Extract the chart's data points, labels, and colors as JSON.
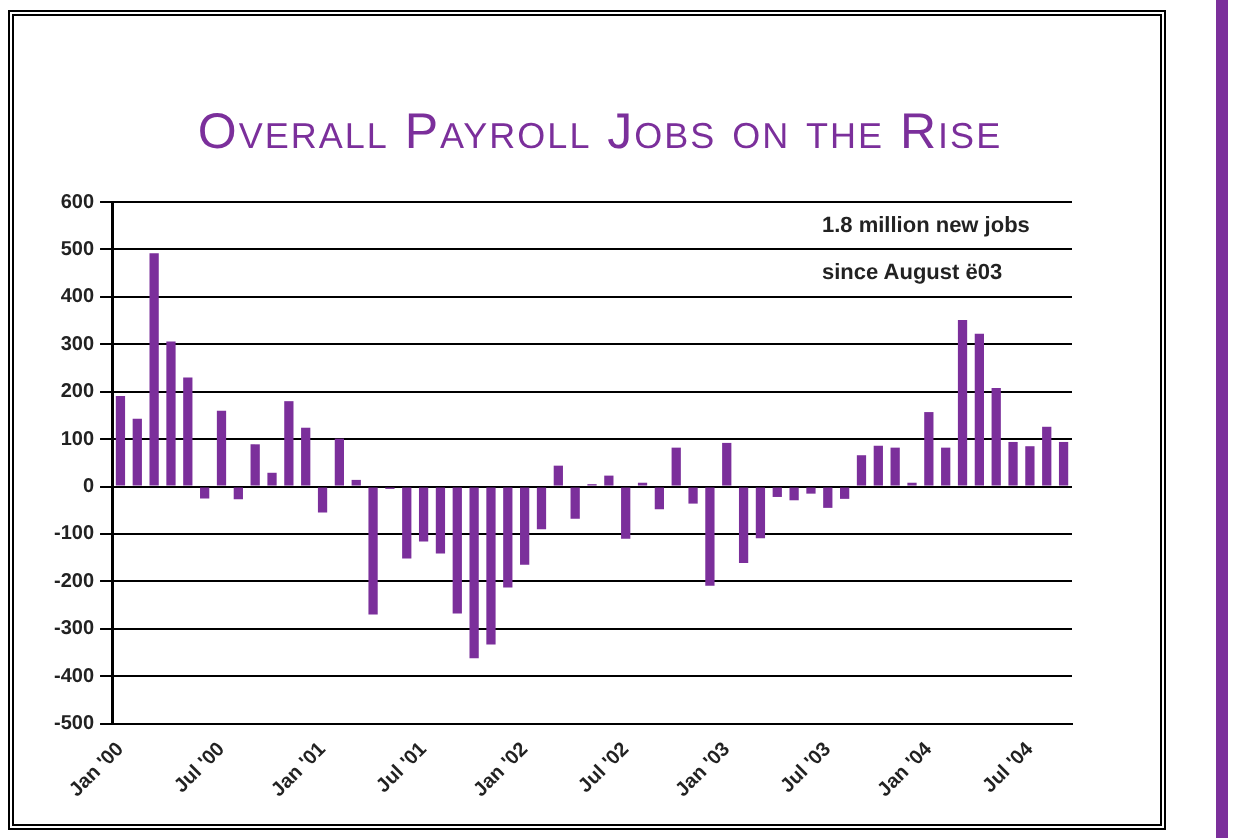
{
  "chart_data": {
    "type": "bar",
    "title": "Overall Payroll Jobs on the Rise",
    "categories": [
      "Jan '00",
      null,
      null,
      null,
      null,
      null,
      "Jul '00",
      null,
      null,
      null,
      null,
      null,
      "Jan '01",
      null,
      null,
      null,
      null,
      null,
      "Jul '01",
      null,
      null,
      null,
      null,
      null,
      "Jan '02",
      null,
      null,
      null,
      null,
      null,
      "Jul '02",
      null,
      null,
      null,
      null,
      null,
      "Jan '03",
      null,
      null,
      null,
      null,
      null,
      "Jul '03",
      null,
      null,
      null,
      null,
      null,
      "Jan '04",
      null,
      null,
      null,
      null,
      null,
      "Jul '04",
      null,
      null
    ],
    "values": [
      191,
      143,
      492,
      306,
      230,
      -25,
      160,
      -27,
      89,
      29,
      180,
      124,
      -55,
      101,
      14,
      -270,
      -5,
      -152,
      -116,
      -141,
      -268,
      -362,
      -333,
      -213,
      -165,
      -90,
      44,
      -68,
      5,
      23,
      -110,
      8,
      -48,
      82,
      -36,
      -209,
      92,
      -161,
      -109,
      -22,
      -29,
      -15,
      -45,
      -26,
      66,
      86,
      82,
      8,
      157,
      82,
      351,
      322,
      208,
      94,
      85,
      126,
      94
    ],
    "color": "#7b2f9b",
    "ylim": [
      -500,
      600
    ],
    "yticks": [
      -500,
      -400,
      -300,
      -200,
      -100,
      0,
      100,
      200,
      300,
      400,
      500,
      600
    ],
    "grid": "y",
    "annotations": [
      "1.8 million new jobs",
      "since August ë03"
    ]
  }
}
